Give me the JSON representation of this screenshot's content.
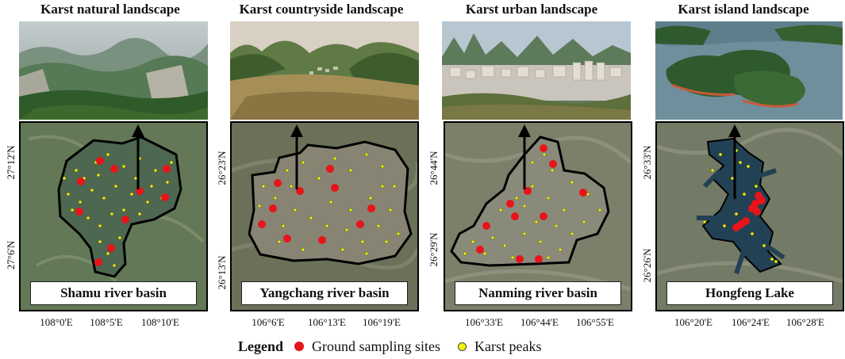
{
  "panels": [
    {
      "title": "Karst natural landscape",
      "basin_label": "Shamu river basin",
      "xticks": [
        "108°0'E",
        "108°5'E",
        "108°10'E"
      ],
      "yticks": [
        "27°12'N",
        "27°6'N"
      ],
      "photo_scene": "forested karst gorge with cliffs",
      "colors": {
        "sky": "#9aa8a8",
        "hills": "#557a55",
        "foreground": "#2f5a2a"
      }
    },
    {
      "title": "Karst countryside landscape",
      "basin_label": "Yangchang river basin",
      "xticks": [
        "106°6'E",
        "106°13'E",
        "106°19'E"
      ],
      "yticks": [
        "26°23'N",
        "26°13'N"
      ],
      "photo_scene": "cone karst hills above farmland and village",
      "colors": {
        "sky": "#d8d0c2",
        "hills": "#4c6a33",
        "foreground": "#8f7a4a"
      }
    },
    {
      "title": "Karst urban landscape",
      "basin_label": "Nanming river basin",
      "xticks": [
        "106°33'E",
        "106°44'E",
        "106°55'E"
      ],
      "yticks": [
        "26°44'N",
        "26°29'N"
      ],
      "photo_scene": "city buildings below karst peaks",
      "colors": {
        "sky": "#b8c6d2",
        "hills": "#5d7a5a",
        "foreground": "#c9c4bc"
      }
    },
    {
      "title": "Karst island landscape",
      "basin_label": "Hongfeng Lake",
      "xticks": [
        "106°20'E",
        "106°24'E",
        "106°28'E"
      ],
      "yticks": [
        "26°33'N",
        "26°26'N"
      ],
      "photo_scene": "forested karst islands in a lake",
      "colors": {
        "sky": "#6f8f9c",
        "hills": "#2f5a2e",
        "foreground": "#4f7d8c"
      }
    }
  ],
  "legend": {
    "title": "Legend",
    "items": [
      {
        "label": "Ground sampling sites",
        "color": "#e8141a"
      },
      {
        "label": "Karst peaks",
        "color": "#f5f500"
      }
    ]
  },
  "north_arrow": "north-arrow-icon"
}
